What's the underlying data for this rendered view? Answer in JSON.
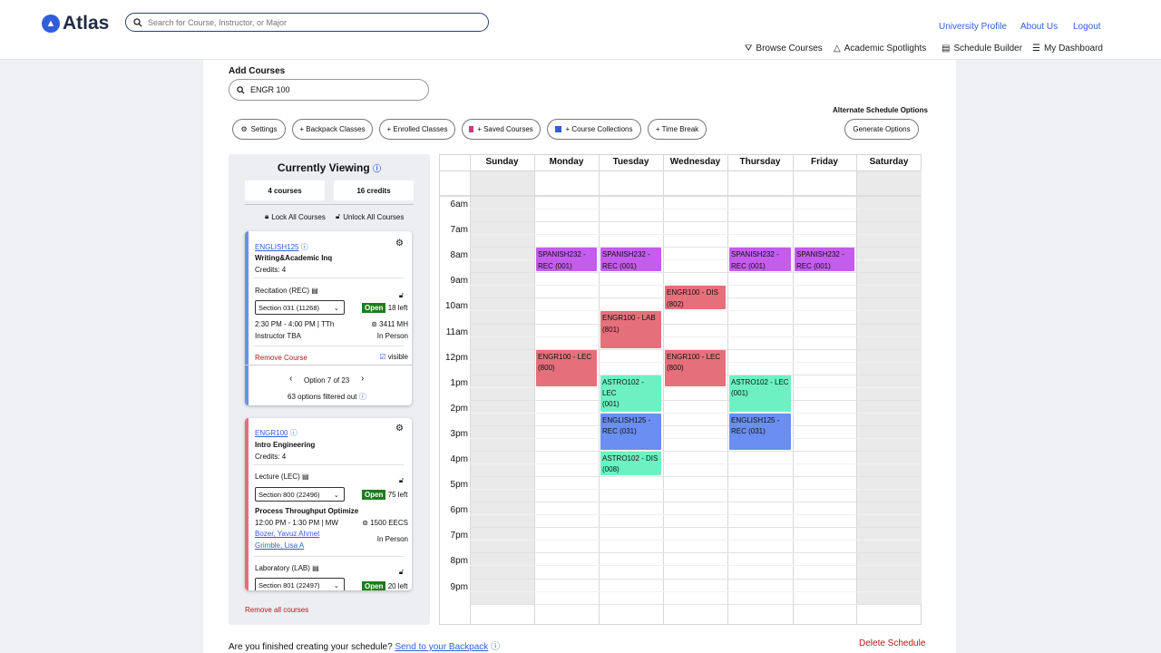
{
  "header": {
    "logo": "Atlas",
    "search_placeholder": "Search for Course, Instructor, or Major",
    "links": [
      "University Profile",
      "About Us",
      "Logout"
    ],
    "nav": [
      "Browse Courses",
      "Academic Spotlights",
      "Schedule Builder",
      "My Dashboard"
    ]
  },
  "add": {
    "label": "Add Courses",
    "value": "ENGR 100"
  },
  "alt_label": "Alternate Schedule Options",
  "generate": "Generate Options",
  "pills": [
    "Settings",
    "+ Backpack Classes",
    "+ Enrolled Classes",
    "+ Saved Courses",
    "+ Course Collections",
    "+ Time Break"
  ],
  "side": {
    "title": "Currently Viewing",
    "courses": "4 courses",
    "credits": "16 credits",
    "lock_all": "Lock All Courses",
    "unlock_all": "Unlock All Courses",
    "remove_all": "Remove all courses"
  },
  "card1": {
    "code": "ENGLISH125",
    "name": "Writing&Academic Inq",
    "credits": "Credits: 4",
    "comp": "Recitation (REC)",
    "section": "Section 031 (11268)",
    "status": "Open",
    "left": "18 left",
    "time": "2:30 PM - 4:00 PM | TTh",
    "room": "3411 MH",
    "instr": "Instructor TBA",
    "mode": "In Person",
    "remove": "Remove Course",
    "visible": "visible",
    "option": "Option 7 of 23",
    "filtered": "63 options filtered out"
  },
  "card2": {
    "code": "ENGR100",
    "name": "Intro Engineering",
    "credits": "Credits: 4",
    "comp": "Lecture (LEC)",
    "section": "Section 800 (22496)",
    "status": "Open",
    "left": "75 left",
    "title": "Process Throughput Optimize",
    "time": "12:00 PM - 1:30 PM | MW",
    "room": "1500 EECS",
    "instr1": "Bozer, Yavuz Ahmet",
    "instr2": "Grimble, Lisa A",
    "mode": "In Person",
    "comp2": "Laboratory (LAB)",
    "section2": "Section 801 (22497)",
    "status2": "Open",
    "left2": "20 left"
  },
  "calendar": {
    "days": [
      "Sunday",
      "Monday",
      "Tuesday",
      "Wednesday",
      "Thursday",
      "Friday",
      "Saturday"
    ],
    "times": [
      "6am",
      "7am",
      "8am",
      "9am",
      "10am",
      "11am",
      "12pm",
      "1pm",
      "2pm",
      "3pm",
      "4pm",
      "5pm",
      "6pm",
      "7pm",
      "8pm",
      "9pm"
    ],
    "events": [
      {
        "day": 1,
        "start": 8,
        "end": 9,
        "line1": "SPANISH232 -",
        "line2": "REC (001)",
        "color": "#c45ced"
      },
      {
        "day": 2,
        "start": 8,
        "end": 9,
        "line1": "SPANISH232 -",
        "line2": "REC (001)",
        "color": "#c45ced"
      },
      {
        "day": 4,
        "start": 8,
        "end": 9,
        "line1": "SPANISH232 -",
        "line2": "REC (001)",
        "color": "#c45ced"
      },
      {
        "day": 5,
        "start": 8,
        "end": 9,
        "line1": "SPANISH232 -",
        "line2": "REC (001)",
        "color": "#c45ced"
      },
      {
        "day": 3,
        "start": 9.5,
        "end": 10.5,
        "line1": "ENGR100 - DIS",
        "line2": "(802)",
        "color": "#e5707c"
      },
      {
        "day": 2,
        "start": 10.5,
        "end": 12,
        "line1": "ENGR100 - LAB",
        "line2": "(801)",
        "color": "#e5707c"
      },
      {
        "day": 1,
        "start": 12,
        "end": 13.5,
        "line1": "ENGR100 - LEC",
        "line2": "(800)",
        "color": "#e5707c"
      },
      {
        "day": 3,
        "start": 12,
        "end": 13.5,
        "line1": "ENGR100 - LEC",
        "line2": "(800)",
        "color": "#e5707c"
      },
      {
        "day": 2,
        "start": 13,
        "end": 14.5,
        "line1": "ASTRO102 - LEC",
        "line2": "(001)",
        "color": "#6ef1c2"
      },
      {
        "day": 4,
        "start": 13,
        "end": 14.5,
        "line1": "ASTRO102 - LEC",
        "line2": "(001)",
        "color": "#6ef1c2"
      },
      {
        "day": 2,
        "start": 14.5,
        "end": 16,
        "line1": "ENGLISH125 -",
        "line2": "REC (031)",
        "color": "#6b8ef3"
      },
      {
        "day": 4,
        "start": 14.5,
        "end": 16,
        "line1": "ENGLISH125 -",
        "line2": "REC (031)",
        "color": "#6b8ef3"
      },
      {
        "day": 2,
        "start": 16,
        "end": 17,
        "line1": "ASTRO102 - DIS",
        "line2": "(008)",
        "color": "#6ef1c2"
      }
    ]
  },
  "footer": {
    "question": "Are you finished creating your schedule?",
    "link": "Send to your Backpack",
    "delete": "Delete Schedule"
  },
  "colors": {
    "accent": "#2f5fd8",
    "remove": "#b01a1a"
  }
}
